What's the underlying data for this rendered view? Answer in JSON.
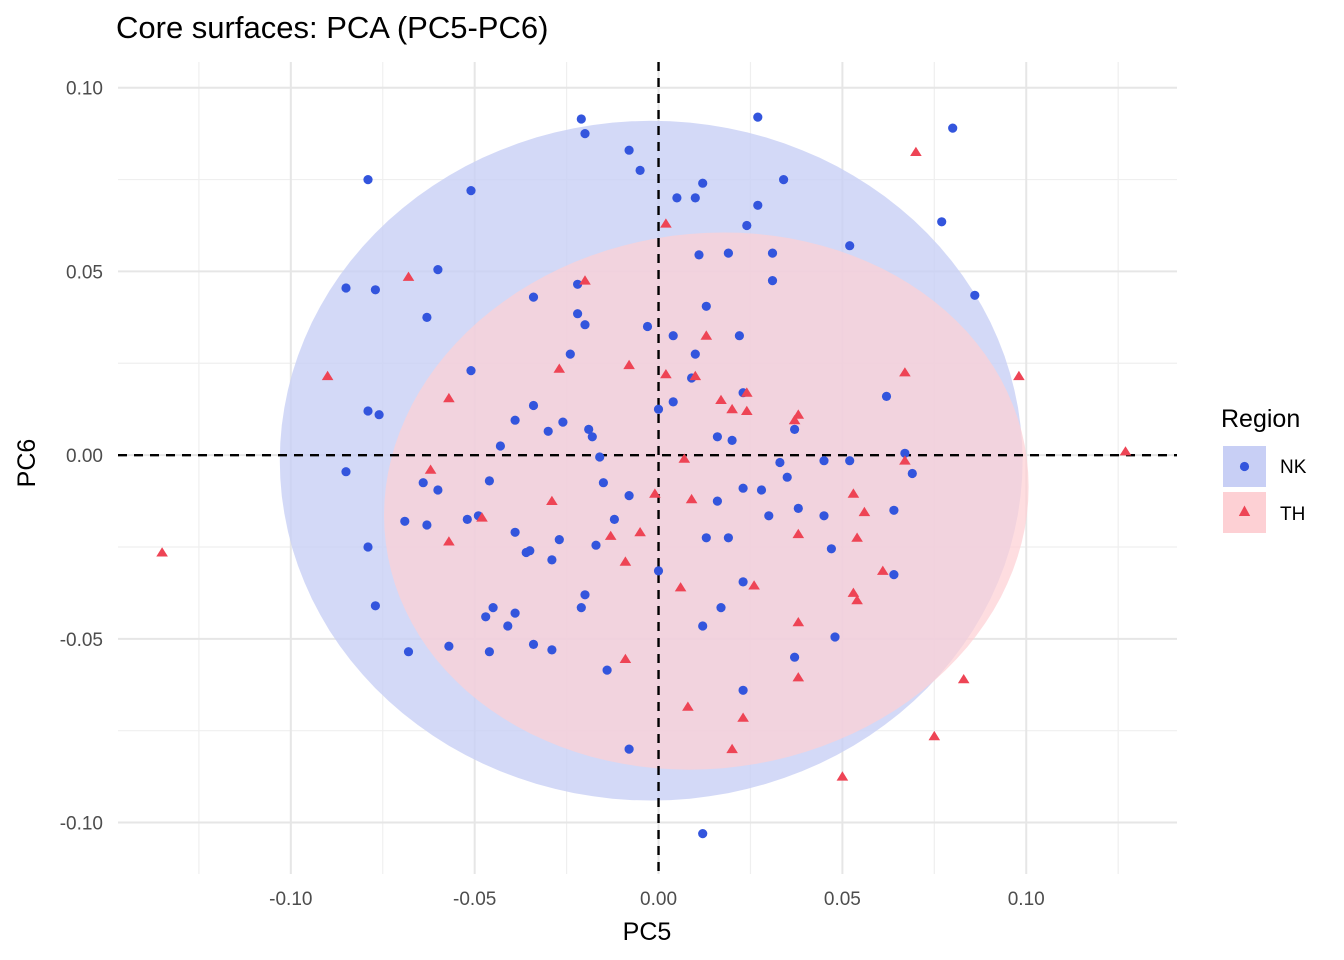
{
  "chart_data": {
    "type": "scatter",
    "title": "Core surfaces: PCA (PC5-PC6)",
    "xlabel": "PC5",
    "ylabel": "PC6",
    "xlim": [
      -0.147,
      0.141
    ],
    "ylim": [
      -0.114,
      0.107
    ],
    "xticks": [
      -0.1,
      -0.05,
      0.0,
      0.05,
      0.1
    ],
    "xtick_labels": [
      "-0.10",
      "-0.05",
      "0.00",
      "0.05",
      "0.10"
    ],
    "yticks": [
      -0.1,
      -0.05,
      0.0,
      0.05,
      0.1
    ],
    "ytick_labels": [
      "-0.10",
      "-0.05",
      "0.00",
      "0.05",
      "0.10"
    ],
    "reference_lines": {
      "x": 0,
      "y": 0,
      "style": "dashed"
    },
    "legend": {
      "title": "Region",
      "position": "right"
    },
    "colors": {
      "NK": "#3355dd",
      "TH": "#ee4455",
      "NK_fill": "#c8cff5",
      "TH_fill": "#fdd0d4"
    },
    "ellipses": [
      {
        "group": "NK",
        "center": [
          -0.002,
          -0.0015
        ],
        "radii": [
          0.101,
          0.0925
        ],
        "tilt_deg": 0
      },
      {
        "group": "TH",
        "center": [
          0.013,
          -0.0125
        ],
        "radii": [
          0.089,
          0.073
        ],
        "tilt_deg": 10
      }
    ],
    "series": [
      {
        "name": "NK",
        "marker": "circle",
        "points": [
          [
            -0.021,
            0.0915
          ],
          [
            -0.02,
            0.0875
          ],
          [
            -0.008,
            0.083
          ],
          [
            -0.005,
            0.0775
          ],
          [
            0.027,
            0.092
          ],
          [
            0.08,
            0.089
          ],
          [
            -0.079,
            0.075
          ],
          [
            -0.051,
            0.072
          ],
          [
            0.012,
            0.074
          ],
          [
            0.034,
            0.075
          ],
          [
            0.005,
            0.07
          ],
          [
            0.01,
            0.07
          ],
          [
            0.027,
            0.068
          ],
          [
            0.077,
            0.0635
          ],
          [
            0.024,
            0.0625
          ],
          [
            0.052,
            0.057
          ],
          [
            0.011,
            0.0545
          ],
          [
            0.019,
            0.055
          ],
          [
            0.031,
            0.055
          ],
          [
            -0.06,
            0.0505
          ],
          [
            -0.085,
            0.0455
          ],
          [
            -0.077,
            0.045
          ],
          [
            -0.022,
            0.0465
          ],
          [
            0.086,
            0.0435
          ],
          [
            -0.034,
            0.043
          ],
          [
            0.013,
            0.0405
          ],
          [
            0.031,
            0.0475
          ],
          [
            -0.063,
            0.0375
          ],
          [
            -0.022,
            0.0385
          ],
          [
            -0.02,
            0.0355
          ],
          [
            -0.003,
            0.035
          ],
          [
            0.004,
            0.0325
          ],
          [
            0.022,
            0.0325
          ],
          [
            -0.024,
            0.0275
          ],
          [
            0.01,
            0.0275
          ],
          [
            -0.051,
            0.023
          ],
          [
            0.009,
            0.021
          ],
          [
            0.023,
            0.017
          ],
          [
            0.062,
            0.016
          ],
          [
            -0.079,
            0.012
          ],
          [
            -0.076,
            0.011
          ],
          [
            -0.034,
            0.0135
          ],
          [
            -0.039,
            0.0095
          ],
          [
            0.004,
            0.0145
          ],
          [
            0.0,
            0.0125
          ],
          [
            -0.026,
            0.009
          ],
          [
            -0.03,
            0.0065
          ],
          [
            -0.019,
            0.007
          ],
          [
            -0.018,
            0.005
          ],
          [
            0.016,
            0.005
          ],
          [
            0.02,
            0.004
          ],
          [
            0.037,
            0.007
          ],
          [
            -0.043,
            0.0025
          ],
          [
            -0.016,
            -0.0005
          ],
          [
            0.033,
            -0.002
          ],
          [
            0.045,
            -0.0015
          ],
          [
            0.052,
            -0.0015
          ],
          [
            0.067,
            0.0005
          ],
          [
            0.069,
            -0.005
          ],
          [
            -0.085,
            -0.0045
          ],
          [
            -0.064,
            -0.0075
          ],
          [
            -0.06,
            -0.0095
          ],
          [
            -0.046,
            -0.007
          ],
          [
            -0.015,
            -0.0075
          ],
          [
            -0.008,
            -0.011
          ],
          [
            0.016,
            -0.0125
          ],
          [
            0.023,
            -0.009
          ],
          [
            0.028,
            -0.0095
          ],
          [
            0.035,
            -0.006
          ],
          [
            -0.069,
            -0.018
          ],
          [
            -0.063,
            -0.019
          ],
          [
            -0.052,
            -0.0175
          ],
          [
            -0.049,
            -0.0165
          ],
          [
            -0.012,
            -0.0175
          ],
          [
            0.03,
            -0.0165
          ],
          [
            0.038,
            -0.0145
          ],
          [
            0.045,
            -0.0165
          ],
          [
            0.064,
            -0.015
          ],
          [
            -0.079,
            -0.025
          ],
          [
            -0.039,
            -0.021
          ],
          [
            -0.035,
            -0.026
          ],
          [
            -0.027,
            -0.023
          ],
          [
            -0.017,
            -0.0245
          ],
          [
            0.013,
            -0.0225
          ],
          [
            0.019,
            -0.0225
          ],
          [
            0.047,
            -0.0255
          ],
          [
            -0.036,
            -0.0265
          ],
          [
            -0.029,
            -0.0285
          ],
          [
            0.0,
            -0.0315
          ],
          [
            0.023,
            -0.0345
          ],
          [
            0.064,
            -0.0325
          ],
          [
            -0.077,
            -0.041
          ],
          [
            -0.02,
            -0.038
          ],
          [
            -0.021,
            -0.0415
          ],
          [
            -0.045,
            -0.0415
          ],
          [
            -0.039,
            -0.043
          ],
          [
            -0.047,
            -0.044
          ],
          [
            -0.041,
            -0.0465
          ],
          [
            0.017,
            -0.0415
          ],
          [
            0.012,
            -0.0465
          ],
          [
            0.048,
            -0.0495
          ],
          [
            -0.068,
            -0.0535
          ],
          [
            -0.057,
            -0.052
          ],
          [
            -0.046,
            -0.0535
          ],
          [
            -0.034,
            -0.0515
          ],
          [
            -0.029,
            -0.053
          ],
          [
            -0.014,
            -0.0585
          ],
          [
            0.037,
            -0.055
          ],
          [
            0.023,
            -0.064
          ],
          [
            -0.008,
            -0.08
          ],
          [
            0.012,
            -0.103
          ]
        ]
      },
      {
        "name": "TH",
        "marker": "triangle",
        "points": [
          [
            0.07,
            0.0825
          ],
          [
            0.002,
            0.063
          ],
          [
            -0.068,
            0.0485
          ],
          [
            -0.02,
            0.0475
          ],
          [
            0.013,
            0.0325
          ],
          [
            -0.09,
            0.0215
          ],
          [
            -0.027,
            0.0235
          ],
          [
            -0.008,
            0.0245
          ],
          [
            0.002,
            0.022
          ],
          [
            0.01,
            0.0215
          ],
          [
            0.067,
            0.0225
          ],
          [
            0.098,
            0.0215
          ],
          [
            -0.057,
            0.0155
          ],
          [
            0.017,
            0.015
          ],
          [
            0.02,
            0.0125
          ],
          [
            0.024,
            0.012
          ],
          [
            0.024,
            0.017
          ],
          [
            0.037,
            0.0095
          ],
          [
            0.038,
            0.011
          ],
          [
            0.127,
            0.001
          ],
          [
            0.007,
            -0.001
          ],
          [
            0.067,
            -0.0015
          ],
          [
            -0.062,
            -0.004
          ],
          [
            -0.029,
            -0.0125
          ],
          [
            -0.001,
            -0.0105
          ],
          [
            0.009,
            -0.012
          ],
          [
            0.053,
            -0.0105
          ],
          [
            0.056,
            -0.0155
          ],
          [
            -0.048,
            -0.017
          ],
          [
            -0.057,
            -0.0235
          ],
          [
            -0.013,
            -0.022
          ],
          [
            -0.005,
            -0.021
          ],
          [
            0.038,
            -0.0215
          ],
          [
            0.054,
            -0.0225
          ],
          [
            -0.009,
            -0.029
          ],
          [
            0.061,
            -0.0315
          ],
          [
            0.006,
            -0.036
          ],
          [
            0.026,
            -0.0355
          ],
          [
            0.053,
            -0.0375
          ],
          [
            0.054,
            -0.0395
          ],
          [
            0.038,
            -0.0455
          ],
          [
            -0.135,
            -0.0265
          ],
          [
            -0.009,
            -0.0555
          ],
          [
            0.038,
            -0.0605
          ],
          [
            0.083,
            -0.061
          ],
          [
            0.008,
            -0.0685
          ],
          [
            0.023,
            -0.0715
          ],
          [
            0.075,
            -0.0765
          ],
          [
            0.02,
            -0.08
          ],
          [
            0.05,
            -0.0875
          ]
        ]
      }
    ]
  }
}
